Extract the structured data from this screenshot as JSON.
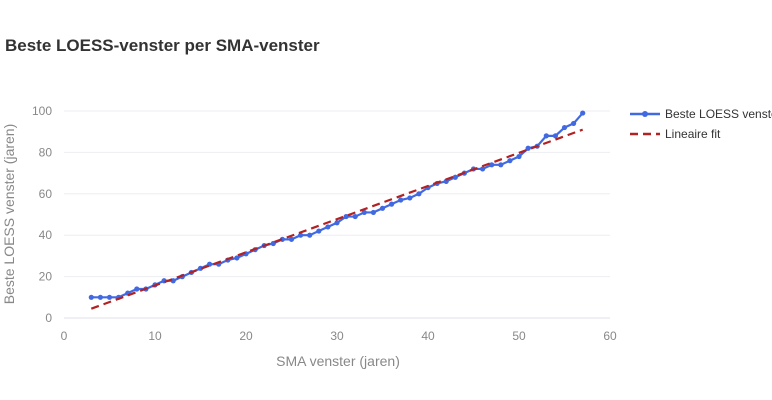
{
  "chart_data": {
    "type": "line",
    "title": "Beste LOESS-venster per SMA-venster",
    "xlabel": "SMA venster (jaren)",
    "ylabel": "Beste LOESS venster (jaren)",
    "xlim": [
      0,
      60
    ],
    "ylim": [
      0,
      105
    ],
    "xticks": [
      0,
      10,
      20,
      30,
      40,
      50,
      60
    ],
    "yticks": [
      0,
      20,
      40,
      60,
      80,
      100
    ],
    "grid": true,
    "legend_position": "top-right-outside",
    "series": [
      {
        "name": "Beste LOESS venster",
        "color": "#4169e1",
        "style": "lines+markers",
        "x": [
          3,
          4,
          5,
          6,
          7,
          8,
          9,
          10,
          11,
          12,
          13,
          14,
          15,
          16,
          17,
          18,
          19,
          20,
          21,
          22,
          23,
          24,
          25,
          26,
          27,
          28,
          29,
          30,
          31,
          32,
          33,
          34,
          35,
          36,
          37,
          38,
          39,
          40,
          41,
          42,
          43,
          44,
          45,
          46,
          47,
          48,
          49,
          50,
          51,
          52,
          53,
          54,
          55,
          56,
          57
        ],
        "y": [
          10,
          10,
          10,
          10,
          12,
          14,
          14,
          16,
          18,
          18,
          20,
          22,
          24,
          26,
          26,
          28,
          29,
          31,
          33,
          35,
          36,
          38,
          38,
          40,
          40,
          42,
          44,
          46,
          49,
          49,
          51,
          51,
          53,
          55,
          57,
          58,
          60,
          63,
          65,
          66,
          68,
          70,
          72,
          72,
          74,
          74,
          76,
          78,
          82,
          83,
          88,
          88,
          92,
          94,
          99
        ]
      },
      {
        "name": "Lineaire fit",
        "color": "#b22222",
        "style": "dash",
        "x": [
          3,
          57
        ],
        "y": [
          4.5,
          91
        ]
      }
    ],
    "legend_labels": [
      "Beste LOESS venster",
      "Lineaire fit"
    ]
  }
}
